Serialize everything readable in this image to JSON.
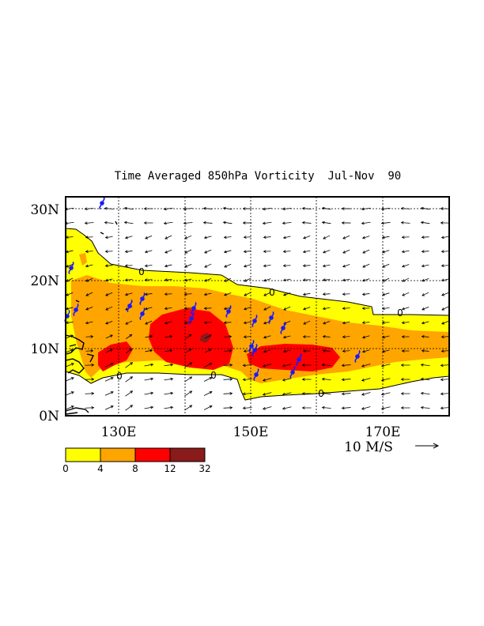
{
  "title": "Time Averaged 850hPa Vorticity  Jul-Nov  90",
  "lat_labels": [
    "30N",
    "20N",
    "10N",
    "0N"
  ],
  "lon_labels": [
    "130E",
    "150E",
    "170E"
  ],
  "vector_scale_label": "10 M/S",
  "colorbar": {
    "colors": [
      "#ffff00",
      "#ffa500",
      "#ff0000",
      "#8b1a1a"
    ],
    "tick_labels": [
      "0",
      "4",
      "8",
      "12",
      "32"
    ]
  },
  "contour_zero_label": "0",
  "icons": {
    "storm_symbol": "tropical-storm-icon",
    "wind_arrow": "wind-vector-arrow"
  }
}
